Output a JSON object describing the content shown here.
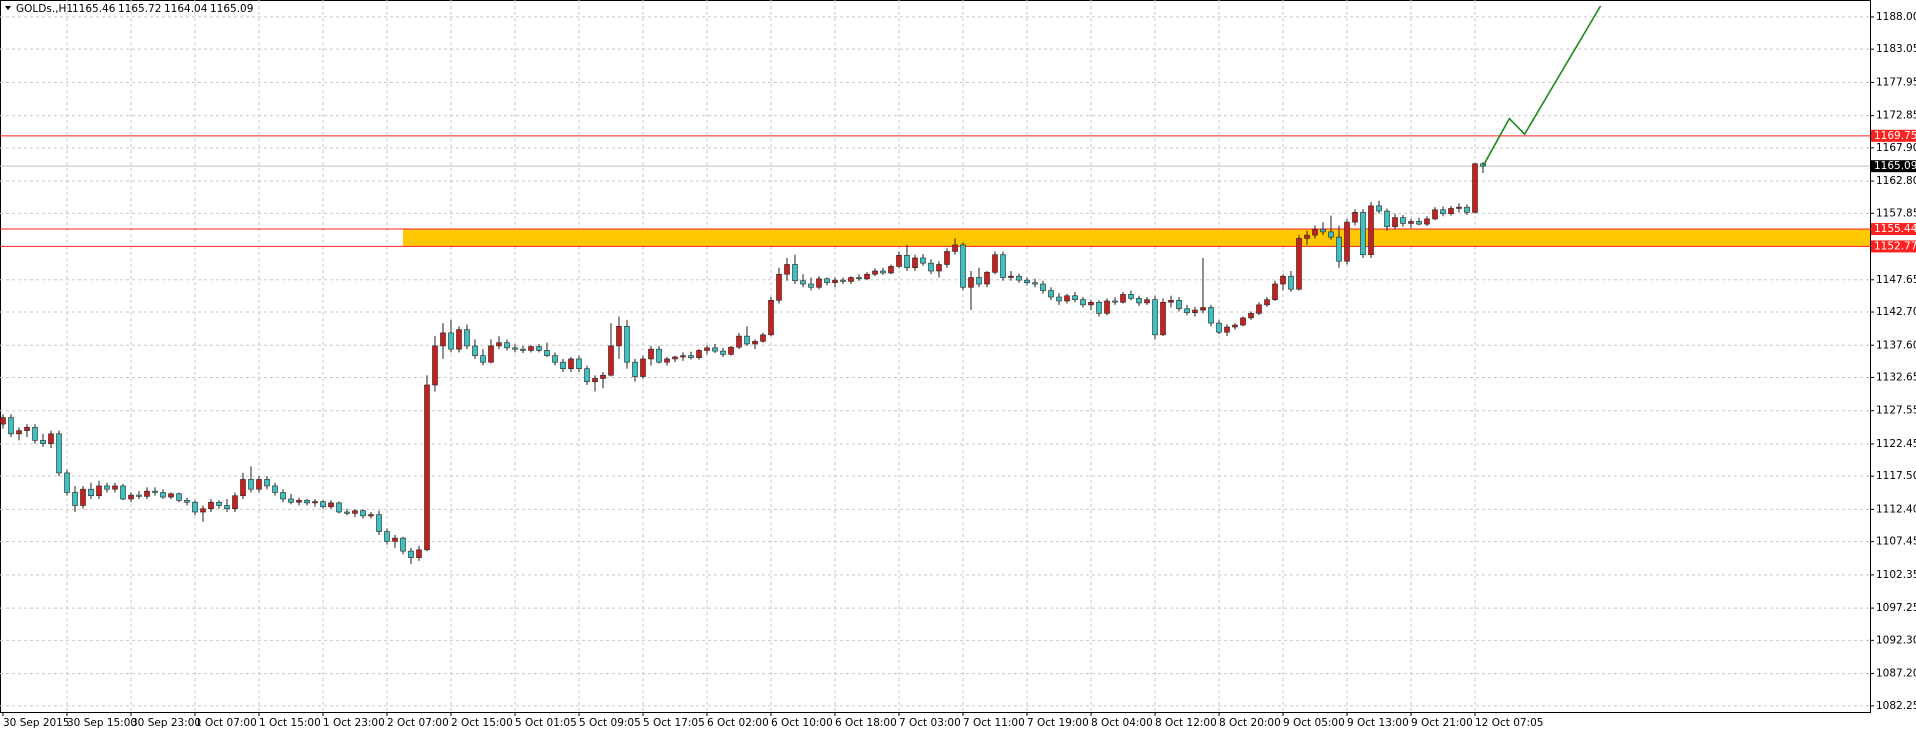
{
  "chart_data": {
    "type": "candlestick",
    "header": {
      "symbol": "GOLDs.,H1",
      "values": [
        "1165.46",
        "1165.72",
        "1164.04",
        "1165.09"
      ]
    },
    "xticks": [
      "30 Sep 2015",
      "30 Sep 15:00",
      "30 Sep 23:00",
      "1 Oct 07:00",
      "1 Oct 15:00",
      "1 Oct 23:00",
      "2 Oct 07:00",
      "2 Oct 15:00",
      "5 Oct 01:05",
      "5 Oct 09:05",
      "5 Oct 17:05",
      "6 Oct 02:00",
      "6 Oct 10:00",
      "6 Oct 18:00",
      "7 Oct 03:00",
      "7 Oct 11:00",
      "7 Oct 19:00",
      "8 Oct 04:00",
      "8 Oct 12:00",
      "8 Oct 20:00",
      "9 Oct 05:00",
      "9 Oct 13:00",
      "9 Oct 21:00",
      "12 Oct 07:05"
    ],
    "ylim": [
      1081.3,
      1190.6
    ],
    "yticks": [
      {
        "value": 1188.0,
        "label": "1188.00"
      },
      1183.05,
      1177.95,
      1172.85,
      {
        "value": 1167.9,
        "label": "1167.90"
      },
      {
        "value": 1162.8,
        "label": "1162.80"
      },
      1157.85,
      1147.65,
      {
        "value": 1142.7,
        "label": "1142.70"
      },
      {
        "value": 1137.6,
        "label": "1137.60"
      },
      1132.65,
      1127.55,
      1122.45,
      {
        "value": 1117.5,
        "label": "1117.50"
      },
      {
        "value": 1112.4,
        "label": "1112.40"
      },
      1107.45,
      1102.35,
      1097.25,
      {
        "value": 1092.3,
        "label": "1092.30"
      },
      {
        "value": 1087.2,
        "label": "1087.20"
      },
      1082.25
    ],
    "grid": true,
    "up_color": "#c8201e",
    "down_color": "#3fc0c0",
    "price_lines": [
      {
        "value": 1169.75,
        "color": "#ff2020",
        "label_fill": "#ff2020"
      },
      {
        "value": 1165.09,
        "color": "#c0c0c0",
        "label_fill": "#000000"
      },
      {
        "value": 1155.44,
        "color": "#ff2020",
        "label_fill": "#ff2020"
      },
      {
        "value": 1152.77,
        "color": "#ff2020",
        "label_fill": "#ff2020"
      }
    ],
    "zone": {
      "low": 1152.77,
      "high": 1155.44,
      "start_bar": 50,
      "color": "#ffc800"
    },
    "projection": {
      "x": [
        185,
        188.3,
        190.2,
        199.7
      ],
      "y": [
        1165.1,
        1172.4,
        1170,
        1189.7
      ],
      "color": "#1a8a1a"
    },
    "ohlc": [
      [
        1125.5,
        1127,
        1124.8,
        1126.5
      ],
      [
        1126.5,
        1127,
        1123.5,
        1124
      ],
      [
        1124,
        1125,
        1123,
        1124.5
      ],
      [
        1124.5,
        1125.5,
        1123.5,
        1125
      ],
      [
        1125,
        1125.5,
        1122.5,
        1123
      ],
      [
        1123,
        1124,
        1122,
        1122.5
      ],
      [
        1122.5,
        1124.5,
        1121.8,
        1124
      ],
      [
        1124,
        1124.5,
        1117.5,
        1118
      ],
      [
        1118,
        1118.5,
        1114.5,
        1115
      ],
      [
        1115,
        1116,
        1112,
        1113
      ],
      [
        1113,
        1116,
        1112.5,
        1115.5
      ],
      [
        1115.5,
        1116.5,
        1114,
        1114.5
      ],
      [
        1114.5,
        1116.8,
        1114,
        1116
      ],
      [
        1116,
        1116.5,
        1115,
        1115.5
      ],
      [
        1115.5,
        1116.5,
        1115,
        1116
      ],
      [
        1116,
        1116.3,
        1113.8,
        1114
      ],
      [
        1114,
        1115,
        1113.5,
        1114.6
      ],
      [
        1114.6,
        1115.2,
        1114,
        1114.4
      ],
      [
        1114.4,
        1115.8,
        1114,
        1115.2
      ],
      [
        1115.2,
        1115.8,
        1114.5,
        1115
      ],
      [
        1115,
        1115.5,
        1114,
        1114.3
      ],
      [
        1114.3,
        1115,
        1114,
        1114.8
      ],
      [
        1114.8,
        1115,
        1113.5,
        1113.8
      ],
      [
        1113.8,
        1114.2,
        1113,
        1113.5
      ],
      [
        1113.5,
        1113.8,
        1111.5,
        1112
      ],
      [
        1112,
        1113,
        1110.5,
        1112.5
      ],
      [
        1112.5,
        1114,
        1112,
        1113.5
      ],
      [
        1113.5,
        1113.8,
        1112.5,
        1113
      ],
      [
        1113,
        1114,
        1112,
        1112.5
      ],
      [
        1112.5,
        1115,
        1112,
        1114.5
      ],
      [
        1114.5,
        1118,
        1114,
        1117
      ],
      [
        1117,
        1119,
        1115,
        1115.5
      ],
      [
        1115.5,
        1117.5,
        1115,
        1117
      ],
      [
        1117,
        1117.5,
        1115.5,
        1116
      ],
      [
        1116,
        1116.5,
        1114.5,
        1115
      ],
      [
        1115,
        1115.5,
        1113.5,
        1114
      ],
      [
        1114,
        1114.8,
        1113.2,
        1113.5
      ],
      [
        1113.5,
        1114.2,
        1113,
        1113.8
      ],
      [
        1113.8,
        1114,
        1113,
        1113.4
      ],
      [
        1113.4,
        1114,
        1112.8,
        1113.6
      ],
      [
        1113.6,
        1113.8,
        1112.5,
        1112.8
      ],
      [
        1112.8,
        1113.8,
        1112.5,
        1113.4
      ],
      [
        1113.4,
        1113.6,
        1111.8,
        1112
      ],
      [
        1112,
        1112.5,
        1111.5,
        1111.8
      ],
      [
        1111.8,
        1112.4,
        1111.2,
        1112.2
      ],
      [
        1112.2,
        1112.4,
        1111,
        1111.4
      ],
      [
        1111.4,
        1112,
        1111,
        1111.6
      ],
      [
        1111.6,
        1112.2,
        1108.5,
        1109
      ],
      [
        1109,
        1109.5,
        1107,
        1107.5
      ],
      [
        1107.5,
        1108.5,
        1106.5,
        1108
      ],
      [
        1108,
        1108.2,
        1105.5,
        1106
      ],
      [
        1106,
        1106.5,
        1104,
        1105
      ],
      [
        1105,
        1106.8,
        1104.5,
        1106.2
      ],
      [
        1106.2,
        1133,
        1106,
        1131.5
      ],
      [
        1131.5,
        1139,
        1130.5,
        1137.5
      ],
      [
        1137.5,
        1141,
        1135.5,
        1139.5
      ],
      [
        1139.5,
        1141.5,
        1136.5,
        1137
      ],
      [
        1137,
        1140.5,
        1136.5,
        1140
      ],
      [
        1140,
        1140.8,
        1137,
        1137.5
      ],
      [
        1137.5,
        1138.5,
        1135.5,
        1136
      ],
      [
        1136,
        1137,
        1134.5,
        1135
      ],
      [
        1135,
        1138.5,
        1134.8,
        1137.5
      ],
      [
        1137.5,
        1139,
        1137,
        1138
      ],
      [
        1138,
        1138.5,
        1136.8,
        1137.2
      ],
      [
        1137.2,
        1137.8,
        1136.5,
        1137
      ],
      [
        1137,
        1137.5,
        1136.4,
        1136.8
      ],
      [
        1136.8,
        1137.6,
        1136.5,
        1137.4
      ],
      [
        1137.4,
        1137.8,
        1136.5,
        1136.8
      ],
      [
        1136.8,
        1138,
        1135.8,
        1136
      ],
      [
        1136,
        1136.5,
        1134.5,
        1135
      ],
      [
        1135,
        1135.5,
        1133.5,
        1134
      ],
      [
        1134,
        1135.8,
        1133.5,
        1135.5
      ],
      [
        1135.5,
        1136,
        1133.5,
        1134
      ],
      [
        1134,
        1134.5,
        1131.5,
        1132
      ],
      [
        1132,
        1133,
        1130.5,
        1132.5
      ],
      [
        1132.5,
        1133.5,
        1131,
        1133
      ],
      [
        1133,
        1141,
        1132.8,
        1137.5
      ],
      [
        1137.5,
        1142,
        1135.5,
        1140.5
      ],
      [
        1140.5,
        1141.5,
        1134,
        1135
      ],
      [
        1135,
        1135.5,
        1132,
        1132.8
      ],
      [
        1132.8,
        1136,
        1132.5,
        1135.5
      ],
      [
        1135.5,
        1137.5,
        1134.5,
        1137
      ],
      [
        1137,
        1137.5,
        1134.8,
        1135
      ],
      [
        1135,
        1135.8,
        1134.5,
        1135.5
      ],
      [
        1135.5,
        1136,
        1135,
        1135.8
      ],
      [
        1135.8,
        1136.5,
        1135.2,
        1136
      ],
      [
        1136,
        1136.6,
        1135.4,
        1135.7
      ],
      [
        1135.7,
        1137,
        1135.4,
        1136.8
      ],
      [
        1136.8,
        1137.6,
        1136.2,
        1137.2
      ],
      [
        1137.2,
        1137.8,
        1136.4,
        1136.7
      ],
      [
        1136.7,
        1137.2,
        1135.8,
        1136.2
      ],
      [
        1136.2,
        1137.5,
        1136,
        1137.3
      ],
      [
        1137.3,
        1139.5,
        1137,
        1139
      ],
      [
        1139,
        1140.5,
        1137.5,
        1137.8
      ],
      [
        1137.8,
        1138.5,
        1137,
        1138.2
      ],
      [
        1138.2,
        1139.5,
        1138,
        1139.2
      ],
      [
        1139.2,
        1145,
        1139,
        1144.5
      ],
      [
        1144.5,
        1149.5,
        1144,
        1148.5
      ],
      [
        1148.5,
        1151,
        1147.5,
        1150
      ],
      [
        1150,
        1151.5,
        1147,
        1147.5
      ],
      [
        1147.5,
        1148.5,
        1146.5,
        1147
      ],
      [
        1147,
        1148,
        1146,
        1146.5
      ],
      [
        1146.5,
        1148.2,
        1146.2,
        1147.8
      ],
      [
        1147.8,
        1148,
        1146.8,
        1147.2
      ],
      [
        1147.2,
        1148,
        1146.5,
        1147.6
      ],
      [
        1147.6,
        1148,
        1147,
        1147.4
      ],
      [
        1147.4,
        1148.2,
        1147,
        1148
      ],
      [
        1148,
        1148.5,
        1147.5,
        1147.8
      ],
      [
        1147.8,
        1148.8,
        1147.6,
        1148.5
      ],
      [
        1148.5,
        1149.4,
        1148.2,
        1149
      ],
      [
        1149,
        1149.5,
        1148.4,
        1148.7
      ],
      [
        1148.7,
        1150,
        1148.5,
        1149.7
      ],
      [
        1149.7,
        1152,
        1149.4,
        1151.4
      ],
      [
        1151.4,
        1153,
        1149,
        1149.5
      ],
      [
        1149.5,
        1151.5,
        1149,
        1151
      ],
      [
        1151,
        1151.6,
        1149.8,
        1150.2
      ],
      [
        1150.2,
        1150.8,
        1148.5,
        1149
      ],
      [
        1149,
        1150.5,
        1148,
        1150
      ],
      [
        1150,
        1152.5,
        1149.5,
        1152
      ],
      [
        1152,
        1154,
        1151.5,
        1153
      ],
      [
        1153,
        1153.4,
        1146,
        1146.5
      ],
      [
        1146.5,
        1149,
        1143,
        1148
      ],
      [
        1148,
        1149.5,
        1146.5,
        1147
      ],
      [
        1147,
        1149,
        1146.5,
        1148.8
      ],
      [
        1148.8,
        1152,
        1148.5,
        1151.5
      ],
      [
        1151.5,
        1152,
        1147.5,
        1148
      ],
      [
        1148,
        1149,
        1147.5,
        1148.2
      ],
      [
        1148.2,
        1148.6,
        1147.2,
        1147.6
      ],
      [
        1147.6,
        1148,
        1146.8,
        1147.2
      ],
      [
        1147.2,
        1147.8,
        1146.5,
        1147
      ],
      [
        1147,
        1147.5,
        1145.5,
        1146
      ],
      [
        1146,
        1146.5,
        1144.5,
        1145
      ],
      [
        1145,
        1145.6,
        1143.8,
        1144.4
      ],
      [
        1144.4,
        1145.5,
        1144,
        1145.2
      ],
      [
        1145.2,
        1145.8,
        1144.2,
        1144.6
      ],
      [
        1144.6,
        1145,
        1143.4,
        1143.8
      ],
      [
        1143.8,
        1144.6,
        1143,
        1144.2
      ],
      [
        1144.2,
        1144.5,
        1142,
        1142.5
      ],
      [
        1142.5,
        1144.8,
        1142.2,
        1144.4
      ],
      [
        1144.4,
        1145,
        1143.8,
        1144.2
      ],
      [
        1144.2,
        1145.8,
        1144,
        1145.4
      ],
      [
        1145.4,
        1146,
        1144.5,
        1144.8
      ],
      [
        1144.8,
        1145.2,
        1143.6,
        1144.1
      ],
      [
        1144.1,
        1145,
        1143.8,
        1144.6
      ],
      [
        1144.6,
        1145.2,
        1138.5,
        1139.2
      ],
      [
        1139.2,
        1144.8,
        1139,
        1144.2
      ],
      [
        1144.2,
        1145.2,
        1143.4,
        1144.5
      ],
      [
        1144.5,
        1145,
        1142.8,
        1143.2
      ],
      [
        1143.2,
        1143.8,
        1142.2,
        1142.6
      ],
      [
        1142.6,
        1143.5,
        1142,
        1143
      ],
      [
        1143,
        1151,
        1142.5,
        1143.4
      ],
      [
        1143.4,
        1143.8,
        1140.5,
        1141
      ],
      [
        1141,
        1141.5,
        1139.3,
        1139.6
      ],
      [
        1139.6,
        1140.8,
        1139,
        1140.4
      ],
      [
        1140.4,
        1141,
        1140,
        1140.7
      ],
      [
        1140.7,
        1142,
        1140.5,
        1141.8
      ],
      [
        1141.8,
        1142.8,
        1141.5,
        1142.5
      ],
      [
        1142.5,
        1144.2,
        1142.2,
        1143.8
      ],
      [
        1143.8,
        1145,
        1143.5,
        1144.6
      ],
      [
        1144.6,
        1147.5,
        1144.4,
        1147
      ],
      [
        1147,
        1148.5,
        1146,
        1148.2
      ],
      [
        1148.2,
        1149,
        1145.8,
        1146.2
      ],
      [
        1146.2,
        1154.5,
        1146,
        1154
      ],
      [
        1154,
        1155.2,
        1153,
        1154.5
      ],
      [
        1154.5,
        1156,
        1154,
        1155.4
      ],
      [
        1155.4,
        1156.5,
        1154.5,
        1155
      ],
      [
        1155,
        1157.5,
        1153.8,
        1154.2
      ],
      [
        1154.2,
        1156,
        1149.5,
        1150.5
      ],
      [
        1150.5,
        1157,
        1150,
        1156.5
      ],
      [
        1156.5,
        1158.5,
        1156,
        1158
      ],
      [
        1158,
        1158.5,
        1151,
        1151.5
      ],
      [
        1151.5,
        1159.6,
        1151,
        1159
      ],
      [
        1159,
        1159.8,
        1157.8,
        1158.2
      ],
      [
        1158.2,
        1158.6,
        1155.2,
        1155.8
      ],
      [
        1155.8,
        1157.8,
        1155.4,
        1157.2
      ],
      [
        1157.2,
        1157.6,
        1155.8,
        1156.3
      ],
      [
        1156.3,
        1157,
        1155.6,
        1156.6
      ],
      [
        1156.6,
        1157.2,
        1156,
        1156.2
      ],
      [
        1156.2,
        1157.4,
        1155.9,
        1157
      ],
      [
        1157,
        1158.8,
        1156.8,
        1158.4
      ],
      [
        1158.4,
        1158.9,
        1157.4,
        1157.8
      ],
      [
        1157.8,
        1159,
        1157.5,
        1158.6
      ],
      [
        1158.6,
        1159.4,
        1158,
        1158.8
      ],
      [
        1158.8,
        1159.2,
        1157.6,
        1158
      ],
      [
        1158,
        1165.6,
        1157.8,
        1165.46
      ],
      [
        1165.46,
        1165.72,
        1164.04,
        1165.09
      ]
    ]
  }
}
